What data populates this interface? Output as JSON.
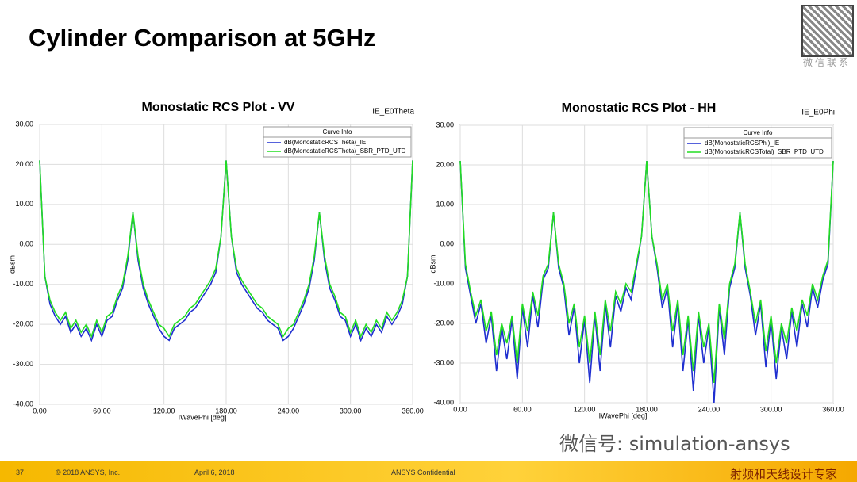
{
  "title": "Cylinder Comparison at 5GHz",
  "footer": {
    "page": "37",
    "copyright": "© 2018 ANSYS, Inc.",
    "date": "April 6, 2018",
    "confidential": "ANSYS Confidential"
  },
  "watermark": {
    "wechat_id": "微信号: simulation-ansys",
    "contact": "微信联系",
    "slogan": "射频和天线设计专家"
  },
  "chart_data": [
    {
      "type": "line",
      "title": "Monostatic RCS Plot - VV",
      "corner_label": "IE_E0Theta",
      "legend_title": "Curve Info",
      "x_label": "IWavePhi [deg]",
      "y_label": "dBsm",
      "grid": true,
      "xlim": [
        0,
        360
      ],
      "ylim": [
        -40,
        30
      ],
      "xticks": [
        {
          "value": 0,
          "label": "0.00"
        },
        {
          "value": 60,
          "label": "60.00"
        },
        {
          "value": 120,
          "label": "120.00"
        },
        {
          "value": 180,
          "label": "180.00"
        },
        {
          "value": 240,
          "label": "240.00"
        },
        {
          "value": 300,
          "label": "300.00"
        },
        {
          "value": 360,
          "label": "360.00"
        }
      ],
      "yticks": [
        {
          "value": 30,
          "label": "30.00"
        },
        {
          "value": 20,
          "label": "20.00"
        },
        {
          "value": 10,
          "label": "10.00"
        },
        {
          "value": 0,
          "label": "0.00"
        },
        {
          "value": -10,
          "label": "-10.00"
        },
        {
          "value": -20,
          "label": "-20.00"
        },
        {
          "value": -30,
          "label": "-30.00"
        },
        {
          "value": -40,
          "label": "-40.00"
        }
      ],
      "x": [
        0,
        5,
        10,
        15,
        20,
        25,
        30,
        35,
        40,
        45,
        50,
        55,
        60,
        65,
        70,
        75,
        80,
        85,
        90,
        95,
        100,
        105,
        110,
        115,
        120,
        125,
        130,
        135,
        140,
        145,
        150,
        155,
        160,
        165,
        170,
        175,
        180,
        185,
        190,
        195,
        200,
        205,
        210,
        215,
        220,
        225,
        230,
        235,
        240,
        245,
        250,
        255,
        260,
        265,
        270,
        275,
        280,
        285,
        290,
        295,
        300,
        305,
        310,
        315,
        320,
        325,
        330,
        335,
        340,
        345,
        350,
        355,
        360
      ],
      "series": [
        {
          "name": "dB(MonostaticRCSTheta)_IE",
          "color": "#1f2fd0",
          "values": [
            21,
            -8,
            -15,
            -18,
            -20,
            -18,
            -22,
            -20,
            -23,
            -21,
            -24,
            -20,
            -23,
            -19,
            -18,
            -14,
            -11,
            -4,
            8,
            -4,
            -11,
            -15,
            -18,
            -21,
            -23,
            -24,
            -21,
            -20,
            -19,
            -17,
            -16,
            -14,
            -12,
            -10,
            -7,
            2,
            21,
            2,
            -7,
            -10,
            -12,
            -14,
            -16,
            -17,
            -19,
            -20,
            -21,
            -24,
            -23,
            -21,
            -18,
            -15,
            -11,
            -4,
            8,
            -4,
            -11,
            -14,
            -18,
            -19,
            -23,
            -20,
            -24,
            -21,
            -23,
            -20,
            -22,
            -18,
            -20,
            -18,
            -15,
            -8,
            21
          ]
        },
        {
          "name": "dB(MonostaticRCSTheta)_SBR_PTD_UTD",
          "color": "#22dd22",
          "values": [
            21,
            -8,
            -14,
            -17,
            -19,
            -17,
            -21,
            -19,
            -22,
            -20,
            -23,
            -19,
            -22,
            -18,
            -17,
            -13,
            -10,
            -3,
            8,
            -3,
            -10,
            -14,
            -17,
            -20,
            -21,
            -23,
            -20,
            -19,
            -18,
            -16,
            -15,
            -13,
            -11,
            -9,
            -6,
            2,
            21,
            2,
            -6,
            -9,
            -11,
            -13,
            -15,
            -16,
            -18,
            -19,
            -20,
            -23,
            -21,
            -20,
            -17,
            -14,
            -10,
            -3,
            8,
            -3,
            -10,
            -13,
            -17,
            -18,
            -22,
            -19,
            -23,
            -20,
            -22,
            -19,
            -21,
            -17,
            -19,
            -17,
            -14,
            -8,
            21
          ]
        }
      ]
    },
    {
      "type": "line",
      "title": "Monostatic RCS Plot - HH",
      "corner_label": "IE_E0Phi",
      "legend_title": "Curve Info",
      "x_label": "IWavePhi [deg]",
      "y_label": "dBsm",
      "grid": true,
      "xlim": [
        0,
        360
      ],
      "ylim": [
        -40,
        30
      ],
      "xticks": [
        {
          "value": 0,
          "label": "0.00"
        },
        {
          "value": 60,
          "label": "60.00"
        },
        {
          "value": 120,
          "label": "120.00"
        },
        {
          "value": 180,
          "label": "180.00"
        },
        {
          "value": 240,
          "label": "240.00"
        },
        {
          "value": 300,
          "label": "300.00"
        },
        {
          "value": 360,
          "label": "360.00"
        }
      ],
      "yticks": [
        {
          "value": 30,
          "label": "30.00"
        },
        {
          "value": 20,
          "label": "20.00"
        },
        {
          "value": 10,
          "label": "10.00"
        },
        {
          "value": 0,
          "label": "0.00"
        },
        {
          "value": -10,
          "label": "-10.00"
        },
        {
          "value": -20,
          "label": "-20.00"
        },
        {
          "value": -30,
          "label": "-30.00"
        },
        {
          "value": -40,
          "label": "-40.00"
        }
      ],
      "x": [
        0,
        5,
        10,
        15,
        20,
        25,
        30,
        35,
        40,
        45,
        50,
        55,
        60,
        65,
        70,
        75,
        80,
        85,
        90,
        95,
        100,
        105,
        110,
        115,
        120,
        125,
        130,
        135,
        140,
        145,
        150,
        155,
        160,
        165,
        170,
        175,
        180,
        185,
        190,
        195,
        200,
        205,
        210,
        215,
        220,
        225,
        230,
        235,
        240,
        245,
        250,
        255,
        260,
        265,
        270,
        275,
        280,
        285,
        290,
        295,
        300,
        305,
        310,
        315,
        320,
        325,
        330,
        335,
        340,
        345,
        350,
        355,
        360
      ],
      "series": [
        {
          "name": "dB(MonostaticRCSPhi)_IE",
          "color": "#1f2fd0",
          "values": [
            21,
            -6,
            -13,
            -20,
            -15,
            -25,
            -18,
            -32,
            -21,
            -29,
            -19,
            -34,
            -16,
            -26,
            -13,
            -21,
            -9,
            -6,
            8,
            -6,
            -11,
            -23,
            -16,
            -30,
            -19,
            -35,
            -18,
            -32,
            -15,
            -26,
            -13,
            -17,
            -11,
            -14,
            -6,
            2,
            21,
            2,
            -6,
            -16,
            -11,
            -26,
            -15,
            -32,
            -19,
            -37,
            -18,
            -30,
            -21,
            -40,
            -16,
            -28,
            -11,
            -6,
            8,
            -6,
            -13,
            -23,
            -15,
            -31,
            -19,
            -34,
            -21,
            -29,
            -17,
            -26,
            -15,
            -21,
            -11,
            -16,
            -9,
            -5,
            21
          ]
        },
        {
          "name": "dB(MonostaticRCSTotal)_SBR_PTD_UTD",
          "color": "#22dd22",
          "values": [
            21,
            -5,
            -12,
            -18,
            -14,
            -22,
            -17,
            -28,
            -20,
            -25,
            -18,
            -30,
            -15,
            -22,
            -12,
            -18,
            -8,
            -5,
            8,
            -5,
            -10,
            -20,
            -15,
            -26,
            -18,
            -30,
            -17,
            -28,
            -14,
            -22,
            -12,
            -15,
            -10,
            -12,
            -5,
            2,
            21,
            2,
            -5,
            -14,
            -10,
            -22,
            -14,
            -28,
            -18,
            -32,
            -17,
            -26,
            -20,
            -35,
            -15,
            -24,
            -10,
            -5,
            8,
            -5,
            -12,
            -20,
            -14,
            -27,
            -18,
            -30,
            -20,
            -25,
            -16,
            -22,
            -14,
            -18,
            -10,
            -14,
            -8,
            -4,
            21
          ]
        }
      ]
    }
  ]
}
